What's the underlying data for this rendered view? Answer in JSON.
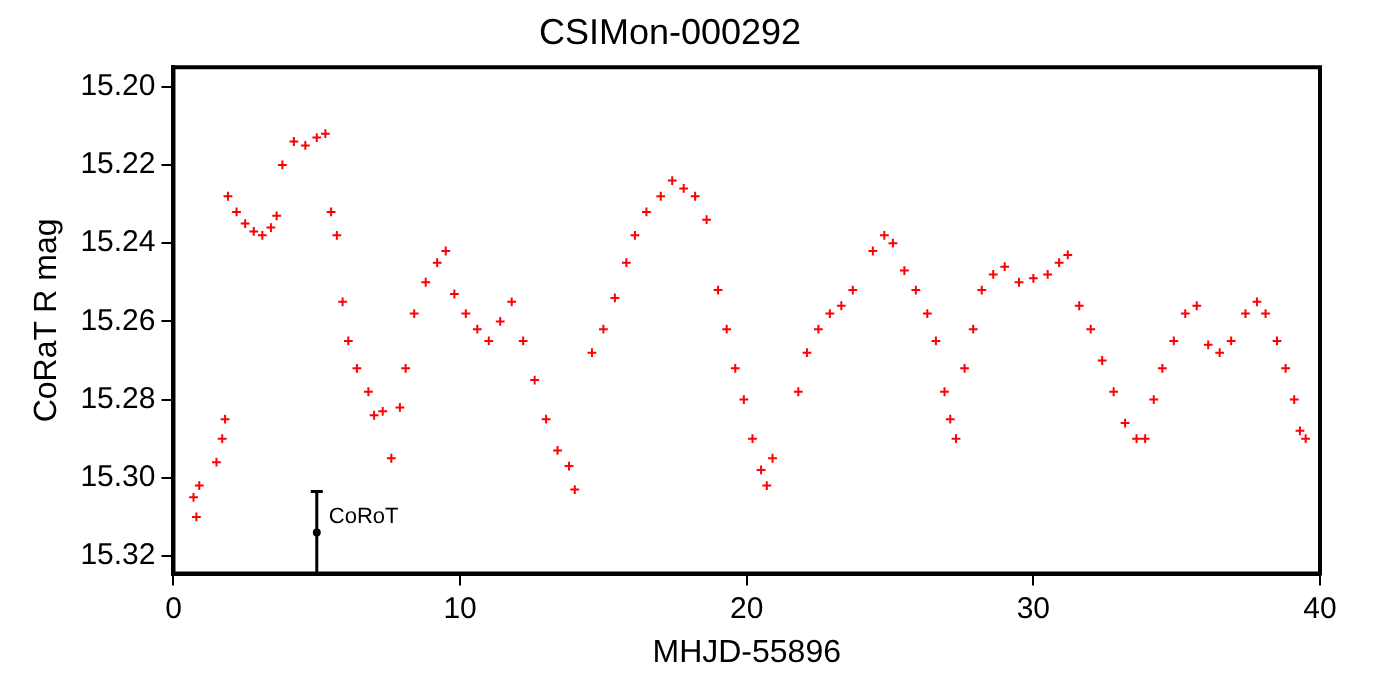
{
  "chart_data": {
    "type": "scatter",
    "title": "CSIMon-000292",
    "xlabel": "MHJD-55896",
    "ylabel": "CoRaT R mag",
    "xlim": [
      0,
      40
    ],
    "xticks": [
      0,
      10,
      20,
      30,
      40
    ],
    "ylim": [
      15.3245,
      15.195
    ],
    "yticks": [
      {
        "value": 15.2,
        "label": "15.20"
      },
      {
        "value": 15.22,
        "label": "15.22"
      },
      {
        "value": 15.24,
        "label": "15.24"
      },
      {
        "value": 15.26,
        "label": "15.26"
      },
      {
        "value": 15.28,
        "label": "15.28"
      },
      {
        "value": 15.3,
        "label": "15.30"
      },
      {
        "value": 15.32,
        "label": "15.32"
      }
    ],
    "marker": "cross",
    "grid": false,
    "legend": false,
    "series": [
      {
        "color": "#ff0000",
        "x": [
          0.7,
          0.8,
          0.9,
          1.5,
          1.7,
          1.8,
          1.9,
          2.2,
          2.5,
          2.8,
          3.1,
          3.4,
          3.6,
          3.8,
          4.2,
          4.6,
          5.0,
          5.3,
          5.5,
          5.7,
          5.9,
          6.1,
          6.4,
          6.8,
          7.0,
          7.3,
          7.6,
          7.9,
          8.1,
          8.4,
          8.8,
          9.2,
          9.5,
          9.8,
          10.2,
          10.6,
          11.0,
          11.4,
          11.8,
          12.2,
          12.6,
          13.0,
          13.4,
          13.8,
          14.0,
          14.6,
          15.0,
          15.4,
          15.8,
          16.1,
          16.5,
          17.0,
          17.4,
          17.8,
          18.2,
          18.6,
          19.0,
          19.3,
          19.6,
          19.9,
          20.2,
          20.5,
          20.7,
          20.9,
          21.8,
          22.1,
          22.5,
          22.9,
          23.3,
          23.7,
          24.4,
          24.8,
          25.1,
          25.5,
          25.9,
          26.3,
          26.6,
          26.9,
          27.1,
          27.3,
          27.6,
          27.9,
          28.2,
          28.6,
          29.0,
          29.5,
          30.0,
          30.5,
          30.9,
          31.2,
          31.6,
          32.0,
          32.4,
          32.8,
          33.2,
          33.6,
          33.9,
          34.2,
          34.5,
          34.9,
          35.3,
          35.7,
          36.1,
          36.5,
          36.9,
          37.4,
          37.8,
          38.1,
          38.5,
          38.8,
          39.1,
          39.3,
          39.5
        ],
        "values": [
          15.305,
          15.31,
          15.302,
          15.296,
          15.29,
          15.285,
          15.228,
          15.232,
          15.235,
          15.237,
          15.238,
          15.236,
          15.233,
          15.22,
          15.214,
          15.215,
          15.213,
          15.212,
          15.232,
          15.238,
          15.255,
          15.265,
          15.272,
          15.278,
          15.284,
          15.283,
          15.295,
          15.282,
          15.272,
          15.258,
          15.25,
          15.245,
          15.242,
          15.253,
          15.258,
          15.262,
          15.265,
          15.26,
          15.255,
          15.265,
          15.275,
          15.285,
          15.293,
          15.297,
          15.303,
          15.268,
          15.262,
          15.254,
          15.245,
          15.238,
          15.232,
          15.228,
          15.224,
          15.226,
          15.228,
          15.234,
          15.252,
          15.262,
          15.272,
          15.28,
          15.29,
          15.298,
          15.302,
          15.295,
          15.278,
          15.268,
          15.262,
          15.258,
          15.256,
          15.252,
          15.242,
          15.238,
          15.24,
          15.247,
          15.252,
          15.258,
          15.265,
          15.278,
          15.285,
          15.29,
          15.272,
          15.262,
          15.252,
          15.248,
          15.246,
          15.25,
          15.249,
          15.248,
          15.245,
          15.243,
          15.256,
          15.262,
          15.27,
          15.278,
          15.286,
          15.29,
          15.29,
          15.28,
          15.272,
          15.265,
          15.258,
          15.256,
          15.266,
          15.268,
          15.265,
          15.258,
          15.255,
          15.258,
          15.265,
          15.272,
          15.28,
          15.288,
          15.29
        ]
      },
      {
        "color": "#000000",
        "marker": "circle",
        "x": [
          5
        ],
        "values": [
          15.314
        ],
        "errors": [
          0.0105
        ]
      }
    ],
    "annotations": [
      {
        "text": "CoRoT",
        "x": 5,
        "y": 15.314
      }
    ]
  }
}
